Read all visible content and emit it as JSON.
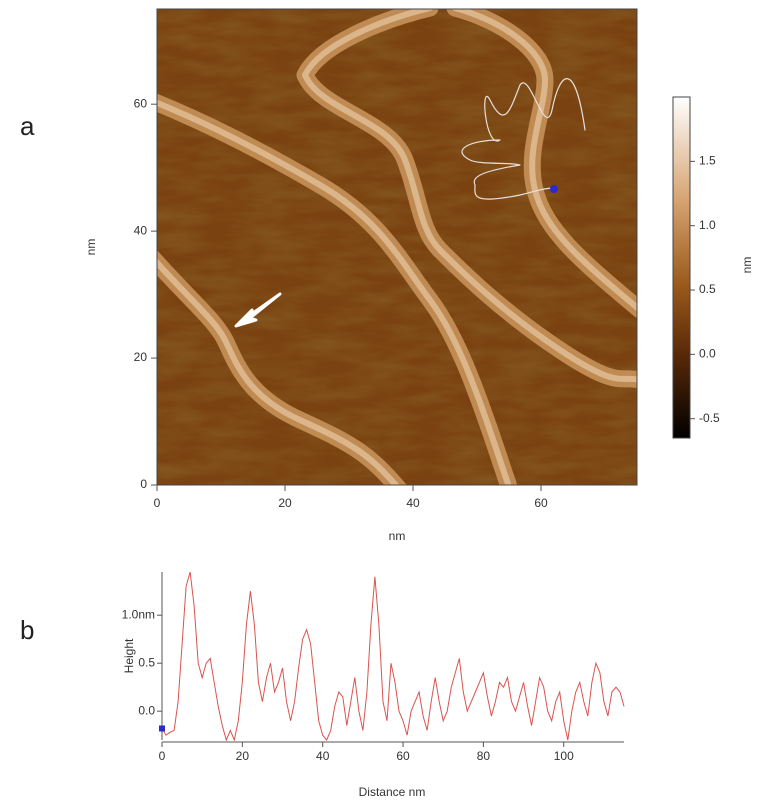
{
  "chart_data": [
    {
      "type": "image",
      "label": "a",
      "xlabel": "nm",
      "ylabel": "nm",
      "xlim": [
        0,
        75
      ],
      "ylim": [
        0,
        75
      ],
      "xticks": [
        0,
        20,
        40,
        60
      ],
      "yticks": [
        0,
        20,
        40,
        60
      ],
      "colorbar": {
        "label": "nm",
        "clim": [
          -0.65,
          2.0
        ],
        "ticks": [
          1.5,
          {
            "value": 1.0,
            "label": "1.0"
          },
          0.5,
          {
            "value": 0,
            "label": "0.0"
          },
          -0.5
        ]
      }
    },
    {
      "type": "line",
      "label": "b",
      "xlabel": "Distance  nm",
      "ylabel": "Height",
      "color": "#d9534f",
      "xlim": [
        0,
        115
      ],
      "ylim": [
        -0.3,
        1.45
      ],
      "xticks": [
        0,
        20,
        40,
        60,
        80,
        100
      ],
      "yticks": [
        {
          "value": 1.0,
          "label": "1.0nm"
        },
        0.5,
        {
          "value": 0,
          "label": "0.0"
        }
      ],
      "x": [
        0,
        1,
        2,
        3,
        4,
        5,
        6,
        7,
        8,
        9,
        10,
        11,
        12,
        13,
        14,
        15,
        16,
        17,
        18,
        19,
        20,
        21,
        22,
        23,
        24,
        25,
        26,
        27,
        28,
        29,
        30,
        31,
        32,
        33,
        34,
        35,
        36,
        37,
        38,
        39,
        40,
        41,
        42,
        43,
        44,
        45,
        46,
        47,
        48,
        49,
        50,
        51,
        52,
        53,
        54,
        55,
        56,
        57,
        58,
        59,
        60,
        61,
        62,
        63,
        64,
        65,
        66,
        67,
        68,
        69,
        70,
        71,
        72,
        73,
        74,
        75,
        76,
        77,
        78,
        79,
        80,
        81,
        82,
        83,
        84,
        85,
        86,
        87,
        88,
        89,
        90,
        91,
        92,
        93,
        94,
        95,
        96,
        97,
        98,
        99,
        100,
        101,
        102,
        103,
        104,
        105,
        106,
        107,
        108,
        109,
        110,
        111,
        112,
        113,
        114,
        115
      ],
      "values": [
        -0.18,
        -0.25,
        -0.22,
        -0.2,
        0.1,
        0.7,
        1.3,
        1.45,
        1.1,
        0.5,
        0.35,
        0.5,
        0.55,
        0.3,
        0.05,
        -0.15,
        -0.3,
        -0.2,
        -0.3,
        -0.1,
        0.3,
        0.9,
        1.25,
        0.9,
        0.3,
        0.1,
        0.35,
        0.5,
        0.2,
        0.3,
        0.45,
        0.1,
        -0.1,
        0.1,
        0.45,
        0.75,
        0.85,
        0.7,
        0.3,
        -0.1,
        -0.25,
        -0.3,
        -0.2,
        0.05,
        0.2,
        0.15,
        -0.15,
        0.1,
        0.35,
        0.0,
        -0.2,
        0.2,
        0.9,
        1.4,
        0.9,
        0.1,
        -0.1,
        0.5,
        0.3,
        0.0,
        -0.1,
        -0.25,
        0.0,
        0.1,
        0.2,
        -0.05,
        -0.2,
        0.1,
        0.35,
        0.1,
        -0.1,
        0.0,
        0.25,
        0.4,
        0.55,
        0.2,
        0.0,
        0.1,
        0.2,
        0.3,
        0.4,
        0.15,
        -0.05,
        0.1,
        0.3,
        0.25,
        0.35,
        0.1,
        0.0,
        0.15,
        0.3,
        0.05,
        -0.15,
        0.1,
        0.35,
        0.25,
        0.0,
        -0.1,
        0.1,
        0.2,
        -0.1,
        -0.3,
        0.0,
        0.2,
        0.3,
        0.1,
        -0.05,
        0.3,
        0.5,
        0.4,
        0.1,
        -0.05,
        0.2,
        0.25,
        0.2,
        0.05
      ]
    }
  ]
}
